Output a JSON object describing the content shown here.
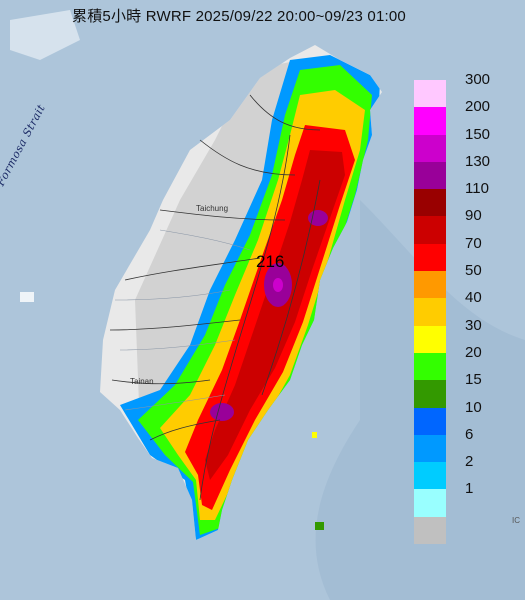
{
  "title": "累積5小時 RWRF 2025/09/22 20:00~09/23 01:00",
  "map": {
    "strait_label": "Formosa Strait",
    "city_labels": [
      "Taichung",
      "Tainan"
    ],
    "max_value_label": "216",
    "corner_text": "IC",
    "colors": {
      "sea": "#a9c2d8",
      "land_base": "#e9e9e9",
      "no_rain": "#c0c0c0",
      "river": "#8a96a6",
      "border": "#333333"
    }
  },
  "legend": {
    "levels": [
      {
        "label": "300",
        "color": "#ffc8ff"
      },
      {
        "label": "200",
        "color": "#ff00ff"
      },
      {
        "label": "150",
        "color": "#cc00cc"
      },
      {
        "label": "130",
        "color": "#990099"
      },
      {
        "label": "110",
        "color": "#990000"
      },
      {
        "label": "90",
        "color": "#cc0000"
      },
      {
        "label": "70",
        "color": "#ff0000"
      },
      {
        "label": "50",
        "color": "#ff9900"
      },
      {
        "label": "40",
        "color": "#ffcc00"
      },
      {
        "label": "30",
        "color": "#ffff00"
      },
      {
        "label": "20",
        "color": "#33ff00"
      },
      {
        "label": "15",
        "color": "#339900"
      },
      {
        "label": "10",
        "color": "#0066ff"
      },
      {
        "label": "6",
        "color": "#0099ff"
      },
      {
        "label": "2",
        "color": "#00ccff"
      },
      {
        "label": "1",
        "color": "#99ffff"
      },
      {
        "label": "",
        "color": "#c0c0c0"
      }
    ]
  }
}
